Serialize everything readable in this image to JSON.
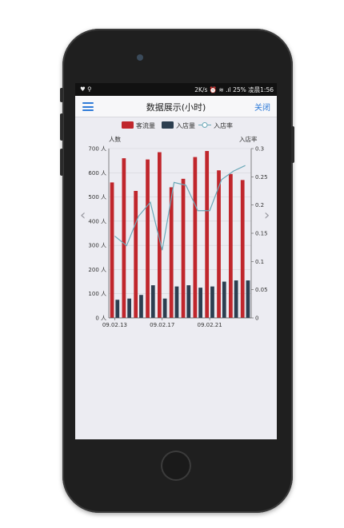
{
  "status_bar": {
    "left_icons": "♥ ⚲",
    "right_text": "2K/s ⏰ ≋ .ıl 25% 凌晨1:56"
  },
  "nav": {
    "title": "数据展示(小时)",
    "close_label": "关闭",
    "menu_icon": "hamburger-menu-icon"
  },
  "colors": {
    "bar_traffic": "#c0262c",
    "bar_entries": "#2c3e50",
    "line_rate": "#6aa8b8",
    "accent": "#2f7bd8"
  },
  "chart_data": {
    "type": "bar",
    "legend": [
      "客流量",
      "入店量",
      "入店率"
    ],
    "legend_position": "top",
    "y_left_label": "人数",
    "y_right_label": "入店率",
    "y_left_ticks": [
      "0 人",
      "100 人",
      "200 人",
      "300 人",
      "400 人",
      "500 人",
      "600 人",
      "700 人"
    ],
    "y_right_ticks": [
      "0",
      "0.05",
      "0.1",
      "0.15",
      "0.2",
      "0.25",
      "0.3"
    ],
    "ylim": [
      0,
      700
    ],
    "ylim_right": [
      0,
      0.3
    ],
    "x_tick_labels": [
      "09.02.13",
      "09.02.17",
      "09.02.21"
    ],
    "x_tick_indices": [
      0,
      4,
      8
    ],
    "n": 12,
    "series": [
      {
        "name": "客流量",
        "kind": "bar",
        "values": [
          560,
          660,
          525,
          655,
          685,
          540,
          575,
          665,
          690,
          610,
          595,
          570
        ]
      },
      {
        "name": "入店量",
        "kind": "bar",
        "values": [
          75,
          80,
          95,
          135,
          80,
          130,
          135,
          125,
          130,
          150,
          155,
          155
        ]
      },
      {
        "name": "入店率",
        "kind": "line",
        "values": [
          0.145,
          0.128,
          0.18,
          0.205,
          0.12,
          0.24,
          0.235,
          0.19,
          0.19,
          0.245,
          0.26,
          0.27
        ]
      }
    ],
    "grid": true
  }
}
